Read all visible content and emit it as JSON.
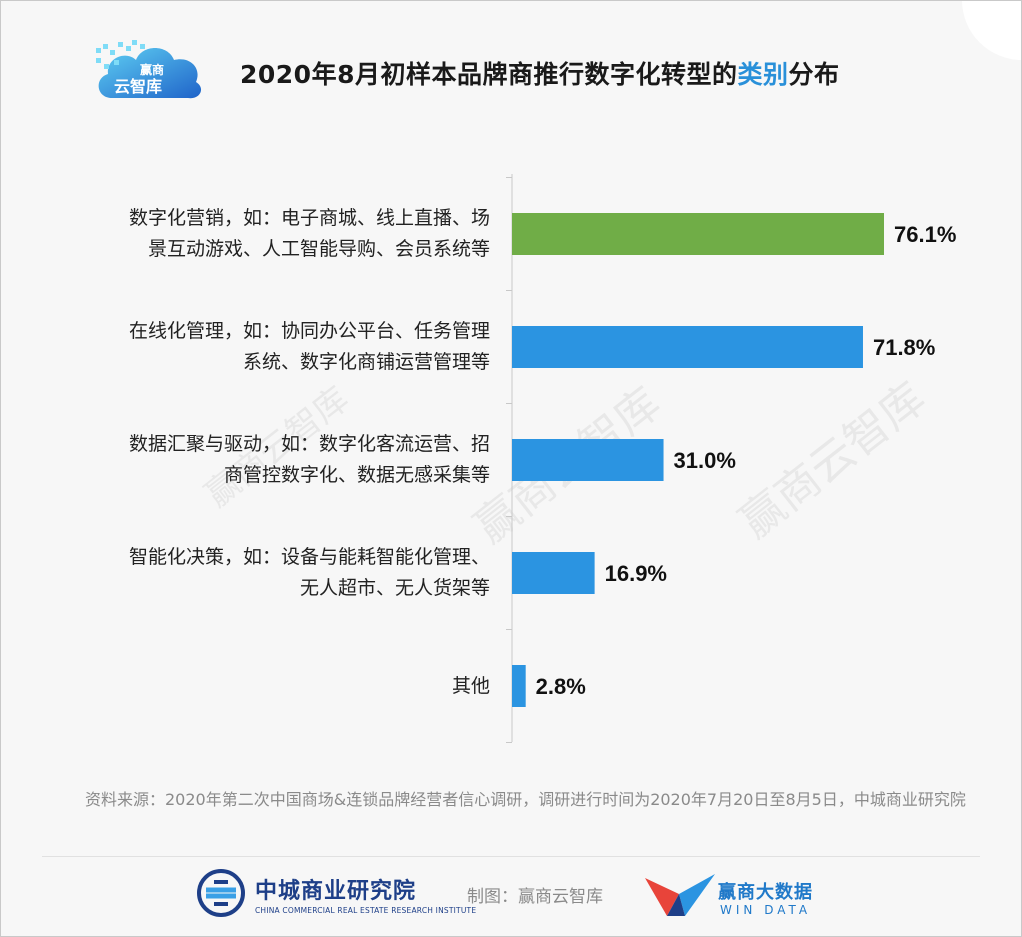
{
  "logo": {
    "line1": "赢商",
    "line2": "云智库"
  },
  "title": {
    "part1": "2020年8月初样本品牌商推行数字化转型的",
    "highlight": "类别",
    "part2": "分布"
  },
  "chart_data": {
    "type": "bar",
    "orientation": "horizontal",
    "categories": [
      [
        "数字化营销，如：电子商城、线上直播、场",
        "景互动游戏、人工智能导购、会员系统等"
      ],
      [
        "在线化管理，如：协同办公平台、任务管理",
        "系统、数字化商铺运营管理等"
      ],
      [
        "数据汇聚与驱动，如：数字化客流运营、招",
        "商管控数字化、数据无感采集等"
      ],
      [
        "智能化决策，如：设备与能耗智能化管理、",
        "无人超市、无人货架等"
      ],
      [
        "其他"
      ]
    ],
    "values": [
      76.1,
      71.8,
      31.0,
      16.9,
      2.8
    ],
    "value_labels": [
      "76.1%",
      "71.8%",
      "31.0%",
      "16.9%",
      "2.8%"
    ],
    "bar_colors": [
      "#70ad47",
      "#2b94e1",
      "#2b94e1",
      "#2b94e1",
      "#2b94e1"
    ],
    "xlim": [
      0,
      100
    ]
  },
  "watermark": "赢商云智库",
  "source": "资料来源：2020年第二次中国商场&连锁品牌经营者信心调研，调研进行时间为2020年7月20日至8月5日，中城商业研究院",
  "footer": {
    "org_cn": "中城商业研究院",
    "org_en": "CHINA COMMERCIAL REAL ESTATE RESEARCH INSTITUTE",
    "credit": "制图：赢商云智库",
    "brand_cn": "赢商大数据",
    "brand_en": "WIN DATA"
  },
  "colors": {
    "accent": "#2990d9",
    "green": "#70ad47",
    "blue": "#2b94e1"
  }
}
